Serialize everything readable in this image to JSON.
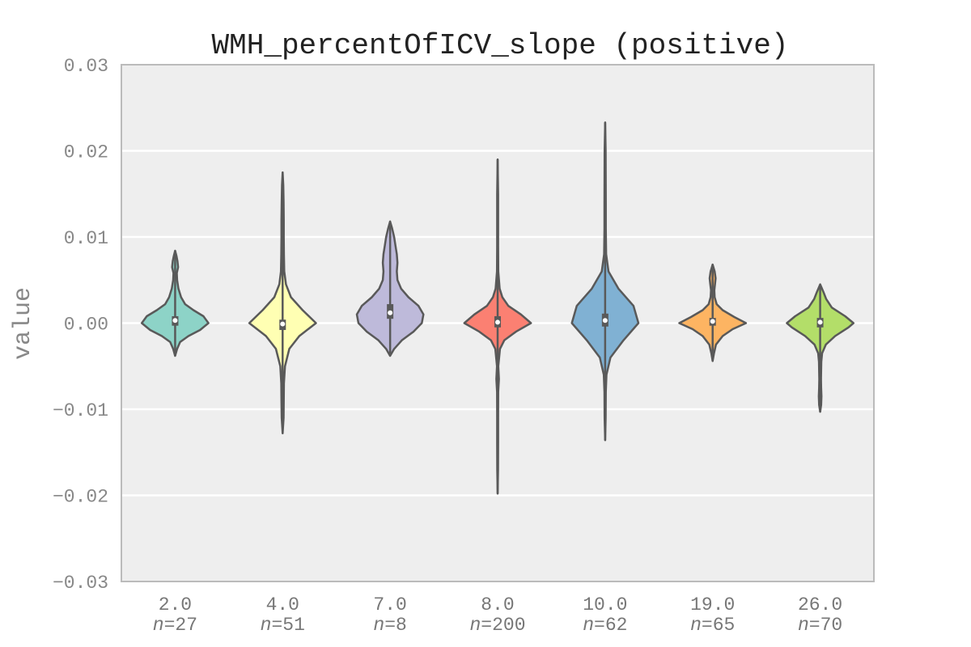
{
  "chart_data": {
    "type": "violin",
    "title": "WMH_percentOfICV_slope (positive)",
    "xlabel": "",
    "ylabel": "value",
    "ylim": [
      -0.03,
      0.03
    ],
    "yticks": [
      "0.03",
      "0.02",
      "0.01",
      "0.00",
      "−0.01",
      "−0.02",
      "−0.03"
    ],
    "ytick_values": [
      0.03,
      0.02,
      0.01,
      0.0,
      -0.01,
      -0.02,
      -0.03
    ],
    "grid": true,
    "background": "#eeeeee",
    "categories": [
      {
        "label": "2.0",
        "n_label": "27",
        "color": "#8dd3c7",
        "min": -0.0038,
        "max": 0.0084,
        "q1": -0.0003,
        "median": 0.0003,
        "q3": 0.0008,
        "density": [
          [
            -0.0038,
            0.0
          ],
          [
            -0.003,
            0.06
          ],
          [
            -0.0022,
            0.15
          ],
          [
            -0.0015,
            0.4
          ],
          [
            -0.0008,
            0.75
          ],
          [
            0.0,
            1.0
          ],
          [
            0.0008,
            0.85
          ],
          [
            0.0015,
            0.55
          ],
          [
            0.0022,
            0.3
          ],
          [
            0.003,
            0.18
          ],
          [
            0.004,
            0.1
          ],
          [
            0.005,
            0.06
          ],
          [
            0.0058,
            0.05
          ],
          [
            0.0065,
            0.09
          ],
          [
            0.0072,
            0.07
          ],
          [
            0.0078,
            0.04
          ],
          [
            0.0084,
            0.0
          ]
        ]
      },
      {
        "label": "4.0",
        "n_label": "51",
        "color": "#ffffb3",
        "min": -0.0128,
        "max": 0.0175,
        "q1": -0.0008,
        "median": -0.0001,
        "q3": 0.0004,
        "density": [
          [
            -0.0128,
            0.0
          ],
          [
            -0.011,
            0.03
          ],
          [
            -0.009,
            0.035
          ],
          [
            -0.007,
            0.04
          ],
          [
            -0.005,
            0.07
          ],
          [
            -0.003,
            0.2
          ],
          [
            -0.0015,
            0.5
          ],
          [
            0.0,
            1.0
          ],
          [
            0.0015,
            0.6
          ],
          [
            0.003,
            0.25
          ],
          [
            0.0045,
            0.1
          ],
          [
            0.006,
            0.05
          ],
          [
            0.008,
            0.04
          ],
          [
            0.01,
            0.035
          ],
          [
            0.012,
            0.035
          ],
          [
            0.014,
            0.03
          ],
          [
            0.016,
            0.02
          ],
          [
            0.0175,
            0.0
          ]
        ]
      },
      {
        "label": "7.0",
        "n_label": "8",
        "color": "#bebada",
        "min": -0.0038,
        "max": 0.0118,
        "q1": 0.0005,
        "median": 0.0012,
        "q3": 0.0022,
        "density": [
          [
            -0.0038,
            0.0
          ],
          [
            -0.003,
            0.12
          ],
          [
            -0.002,
            0.35
          ],
          [
            -0.001,
            0.7
          ],
          [
            0.0,
            0.95
          ],
          [
            0.001,
            1.0
          ],
          [
            0.002,
            0.85
          ],
          [
            0.003,
            0.55
          ],
          [
            0.004,
            0.33
          ],
          [
            0.005,
            0.22
          ],
          [
            0.006,
            0.2
          ],
          [
            0.007,
            0.22
          ],
          [
            0.008,
            0.2
          ],
          [
            0.009,
            0.16
          ],
          [
            0.01,
            0.12
          ],
          [
            0.011,
            0.06
          ],
          [
            0.0118,
            0.0
          ]
        ]
      },
      {
        "label": "8.0",
        "n_label": "200",
        "color": "#fb8072",
        "min": -0.0198,
        "max": 0.019,
        "q1": -0.0005,
        "median": 0.0001,
        "q3": 0.0008,
        "density": [
          [
            -0.0198,
            0.0
          ],
          [
            -0.017,
            0.012
          ],
          [
            -0.014,
            0.015
          ],
          [
            -0.011,
            0.015
          ],
          [
            -0.008,
            0.018
          ],
          [
            -0.0065,
            0.04
          ],
          [
            -0.005,
            0.02
          ],
          [
            -0.003,
            0.07
          ],
          [
            -0.002,
            0.2
          ],
          [
            -0.001,
            0.55
          ],
          [
            0.0,
            1.0
          ],
          [
            0.001,
            0.7
          ],
          [
            0.002,
            0.32
          ],
          [
            0.003,
            0.14
          ],
          [
            0.004,
            0.06
          ],
          [
            0.006,
            0.02
          ],
          [
            0.009,
            0.015
          ],
          [
            0.012,
            0.015
          ],
          [
            0.015,
            0.015
          ],
          [
            0.019,
            0.0
          ]
        ]
      },
      {
        "label": "10.0",
        "n_label": "62",
        "color": "#80b1d3",
        "min": -0.0136,
        "max": 0.0233,
        "q1": -0.0004,
        "median": 0.0003,
        "q3": 0.0011,
        "density": [
          [
            -0.0136,
            0.0
          ],
          [
            -0.011,
            0.015
          ],
          [
            -0.008,
            0.02
          ],
          [
            -0.006,
            0.04
          ],
          [
            -0.004,
            0.16
          ],
          [
            -0.002,
            0.55
          ],
          [
            0.0,
            1.0
          ],
          [
            0.002,
            0.85
          ],
          [
            0.004,
            0.4
          ],
          [
            0.006,
            0.1
          ],
          [
            0.008,
            0.03
          ],
          [
            0.011,
            0.02
          ],
          [
            0.014,
            0.02
          ],
          [
            0.017,
            0.018
          ],
          [
            0.02,
            0.015
          ],
          [
            0.0233,
            0.0
          ]
        ]
      },
      {
        "label": "19.0",
        "n_label": "65",
        "color": "#fdb462",
        "min": -0.0044,
        "max": 0.0068,
        "q1": -0.0003,
        "median": 0.0002,
        "q3": 0.0006,
        "density": [
          [
            -0.0044,
            0.0
          ],
          [
            -0.0035,
            0.04
          ],
          [
            -0.0025,
            0.1
          ],
          [
            -0.0015,
            0.3
          ],
          [
            -0.0007,
            0.6
          ],
          [
            0.0,
            1.0
          ],
          [
            0.0007,
            0.65
          ],
          [
            0.0015,
            0.3
          ],
          [
            0.0022,
            0.12
          ],
          [
            0.003,
            0.06
          ],
          [
            0.0038,
            0.05
          ],
          [
            0.0045,
            0.07
          ],
          [
            0.0052,
            0.09
          ],
          [
            0.006,
            0.06
          ],
          [
            0.0068,
            0.0
          ]
        ]
      },
      {
        "label": "26.0",
        "n_label": "70",
        "color": "#b3de69",
        "min": -0.0103,
        "max": 0.0045,
        "q1": -0.0005,
        "median": 0.0001,
        "q3": 0.0006,
        "density": [
          [
            -0.0103,
            0.0
          ],
          [
            -0.0095,
            0.03
          ],
          [
            -0.0085,
            0.04
          ],
          [
            -0.0075,
            0.03
          ],
          [
            -0.0065,
            0.025
          ],
          [
            -0.0055,
            0.03
          ],
          [
            -0.0045,
            0.035
          ],
          [
            -0.0035,
            0.06
          ],
          [
            -0.0025,
            0.17
          ],
          [
            -0.0015,
            0.45
          ],
          [
            -0.0005,
            0.85
          ],
          [
            0.0,
            1.0
          ],
          [
            0.0008,
            0.75
          ],
          [
            0.0018,
            0.35
          ],
          [
            0.0028,
            0.18
          ],
          [
            0.0036,
            0.1
          ],
          [
            0.0045,
            0.0
          ]
        ]
      }
    ]
  }
}
